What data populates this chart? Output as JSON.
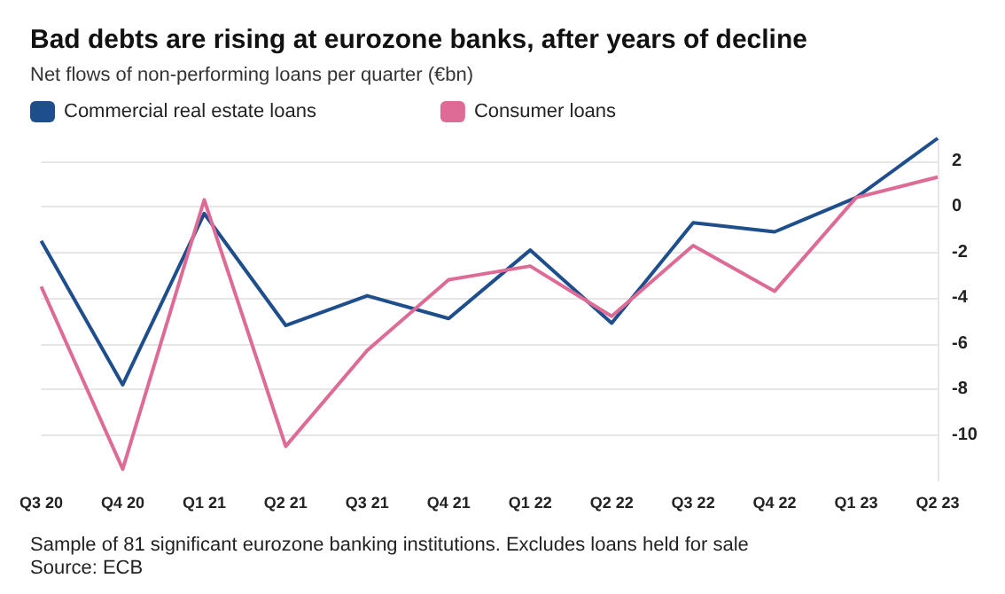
{
  "chart_data": {
    "type": "line",
    "title": "Bad debts are rising at eurozone banks, after years of decline",
    "subtitle": "Net flows of non-performing loans per quarter (€bn)",
    "categories": [
      "Q3 20",
      "Q4 20",
      "Q1 21",
      "Q2 21",
      "Q3 21",
      "Q4 21",
      "Q1 22",
      "Q2 22",
      "Q3 22",
      "Q4 22",
      "Q1 23",
      "Q2 23"
    ],
    "series": [
      {
        "name": "Commercial real estate loans",
        "color": "#1f4e8c",
        "values": [
          -1.5,
          -7.8,
          -0.3,
          -5.2,
          -3.9,
          -4.9,
          -1.9,
          -5.1,
          -0.7,
          -1.1,
          0.4,
          3.0
        ]
      },
      {
        "name": "Consumer loans",
        "color": "#de6b96",
        "values": [
          -3.5,
          -11.5,
          0.3,
          -10.5,
          -6.3,
          -3.2,
          -2.6,
          -4.8,
          -1.7,
          -3.7,
          0.4,
          1.3
        ]
      }
    ],
    "ylim": [
      -12,
      3
    ],
    "yticks": [
      -10,
      -8,
      -6,
      -4,
      -2,
      0,
      2
    ],
    "grid": "y",
    "legend": "top left",
    "marker": "none",
    "line_style": "solid",
    "annotations": [
      "Sample of 81 significant eurozone banking institutions. Excludes loans held for sale",
      "Source: ECB"
    ]
  }
}
